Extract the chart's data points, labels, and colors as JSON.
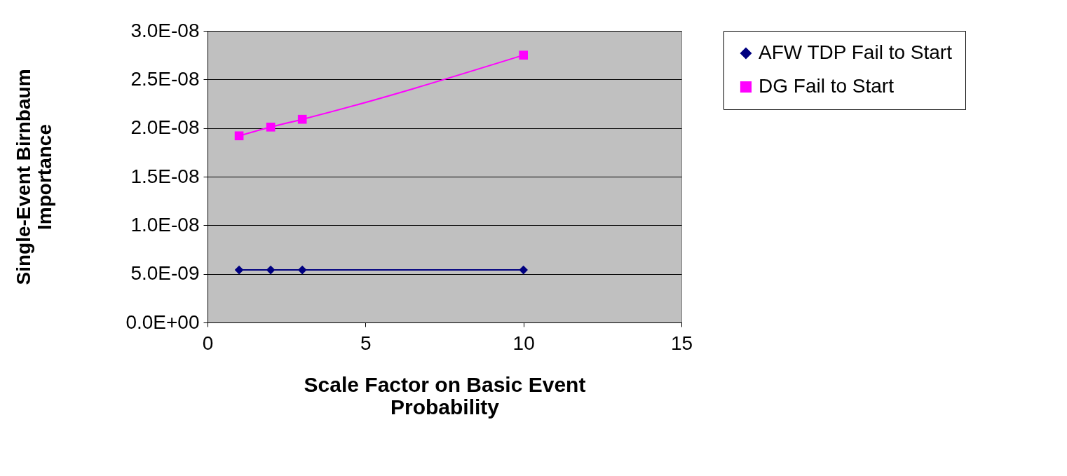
{
  "chart_data": {
    "type": "line",
    "xlabel": "Scale Factor on Basic Event Probability",
    "ylabel": "Single-Event Birnbaum Importance",
    "xlim": [
      0,
      15
    ],
    "xticks": [
      0,
      5,
      10,
      15
    ],
    "ylim": [
      0,
      3e-08
    ],
    "yticks": [
      {
        "value": 0,
        "label": "0.0E+00"
      },
      {
        "value": 5e-09,
        "label": "5.0E-09"
      },
      {
        "value": 1e-08,
        "label": "1.0E-08"
      },
      {
        "value": 1.5e-08,
        "label": "1.5E-08"
      },
      {
        "value": 2e-08,
        "label": "2.0E-08"
      },
      {
        "value": 2.5e-08,
        "label": "2.5E-08"
      },
      {
        "value": 3e-08,
        "label": "3.0E-08"
      }
    ],
    "grid": "y",
    "legend": "right",
    "series": [
      {
        "name": "AFW TDP Fail to Start",
        "color": "#000080",
        "marker": "diamond",
        "x": [
          1,
          2,
          3,
          10
        ],
        "values": [
          5.4e-09,
          5.4e-09,
          5.4e-09,
          5.4e-09
        ]
      },
      {
        "name": "DG Fail to Start",
        "color": "#ff00ff",
        "marker": "square",
        "x": [
          1,
          2,
          3,
          10
        ],
        "values": [
          1.92e-08,
          2.01e-08,
          2.09e-08,
          2.75e-08
        ]
      }
    ]
  }
}
